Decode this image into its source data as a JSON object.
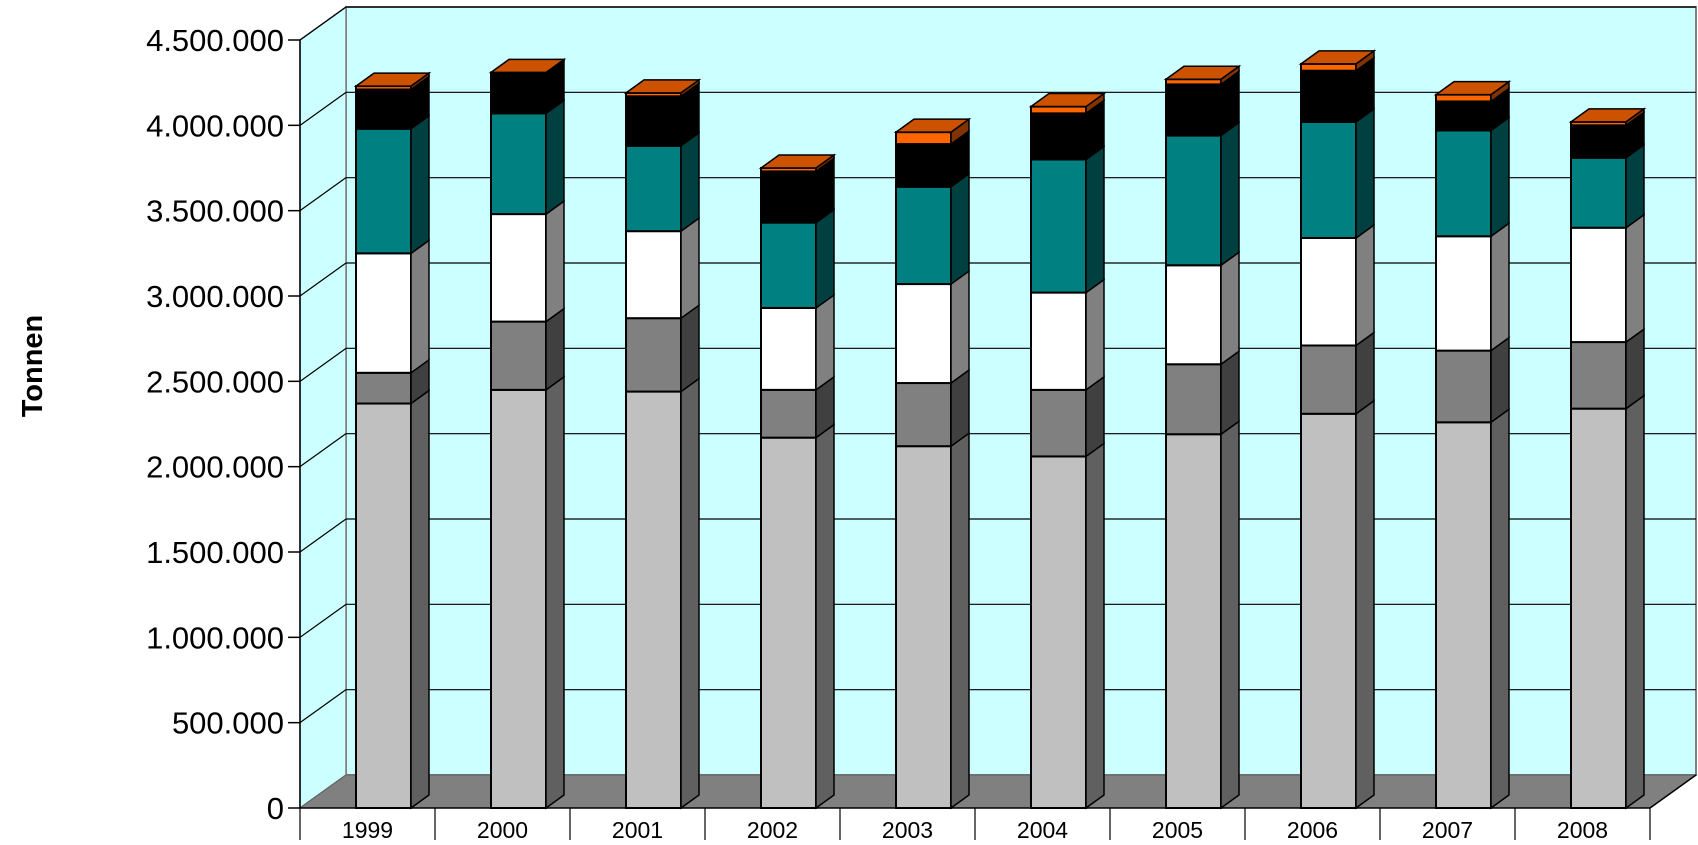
{
  "chart_data": {
    "type": "bar",
    "stacked": true,
    "three_d": true,
    "title": "",
    "xlabel": "",
    "ylabel": "Tonnen",
    "ylim": [
      0,
      4500000
    ],
    "y_ticks": [
      0,
      500000,
      1000000,
      1500000,
      2000000,
      2500000,
      3000000,
      3500000,
      4000000,
      4500000
    ],
    "y_tick_labels": [
      "0",
      "500.000",
      "1.000.000",
      "1.500.000",
      "2.000.000",
      "2.500.000",
      "3.000.000",
      "3.500.000",
      "4.000.000",
      "4.500.000"
    ],
    "grid": true,
    "legend": "none",
    "categories": [
      "1999",
      "2000",
      "2001",
      "2002",
      "2003",
      "2004",
      "2005",
      "2006",
      "2007",
      "2008"
    ],
    "series": [
      {
        "color": "#c0c0c0",
        "values": [
          2370000,
          2450000,
          2440000,
          2170000,
          2120000,
          2060000,
          2190000,
          2310000,
          2260000,
          2340000
        ]
      },
      {
        "color": "#808080",
        "values": [
          180000,
          400000,
          430000,
          280000,
          370000,
          390000,
          410000,
          400000,
          420000,
          390000
        ]
      },
      {
        "color": "#ffffff",
        "values": [
          700000,
          630000,
          510000,
          480000,
          580000,
          570000,
          580000,
          630000,
          670000,
          670000
        ]
      },
      {
        "color": "#008080",
        "values": [
          730000,
          590000,
          500000,
          500000,
          570000,
          780000,
          760000,
          680000,
          620000,
          410000
        ]
      },
      {
        "color": "#000000",
        "values": [
          230000,
          230000,
          290000,
          300000,
          250000,
          270000,
          300000,
          300000,
          170000,
          190000
        ]
      },
      {
        "color": "#ff6600",
        "values": [
          20000,
          10000,
          20000,
          20000,
          70000,
          40000,
          30000,
          40000,
          40000,
          20000
        ]
      }
    ]
  }
}
